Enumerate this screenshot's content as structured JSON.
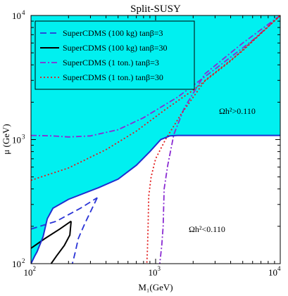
{
  "chart_data": {
    "type": "line",
    "title": "Split-SUSY",
    "xlabel": "M₁(GeV)",
    "ylabel": "μ (GeV)",
    "xscale": "log",
    "yscale": "log",
    "xlim": [
      100,
      10000
    ],
    "ylim": [
      100,
      10000
    ],
    "x_tick_labels": [
      {
        "value": 100,
        "base": "10",
        "exp": "2"
      },
      {
        "value": 1000,
        "base": "10",
        "exp": "3"
      },
      {
        "value": 10000,
        "base": "10",
        "exp": "4"
      }
    ],
    "y_tick_labels": [
      {
        "value": 100,
        "base": "10",
        "exp": "2"
      },
      {
        "value": 1000,
        "base": "10",
        "exp": "3"
      },
      {
        "value": 10000,
        "base": "10",
        "exp": "4"
      }
    ],
    "legend_position": "top-left",
    "region_labels": {
      "above": "Ωh²>0.110",
      "below": "Ωh²<0.110"
    },
    "region_colors": {
      "above": "#00f0f0",
      "below": "#ffffff"
    },
    "boundary": {
      "color": "#1f2fd0",
      "points": [
        [
          100,
          100
        ],
        [
          107,
          115
        ],
        [
          112,
          125
        ],
        [
          125,
          165
        ],
        [
          135,
          230
        ],
        [
          150,
          280
        ],
        [
          200,
          330
        ],
        [
          350,
          410
        ],
        [
          500,
          480
        ],
        [
          700,
          620
        ],
        [
          900,
          800
        ],
        [
          1100,
          1000
        ],
        [
          1300,
          1070
        ],
        [
          1500,
          1080
        ],
        [
          2500,
          1080
        ],
        [
          10000,
          1080
        ]
      ]
    },
    "series": [
      {
        "name": "SuperCDMS (100 kg) tanβ=3",
        "color": "#2a34d6",
        "dash": "dashed",
        "segments": [
          [
            [
              100,
              190
            ],
            [
              160,
              220
            ],
            [
              250,
              280
            ],
            [
              340,
              340
            ]
          ],
          [
            [
              340,
              340
            ],
            [
              270,
              210
            ],
            [
              240,
              160
            ],
            [
              225,
              120
            ],
            [
              215,
              100
            ]
          ]
        ]
      },
      {
        "name": "SuperCDMS (100 kg) tanβ=30",
        "color": "#000000",
        "dash": "solid",
        "segments": [
          [
            [
              100,
              133
            ],
            [
              130,
              160
            ],
            [
              170,
              190
            ],
            [
              210,
              220
            ]
          ],
          [
            [
              210,
              220
            ],
            [
              205,
              170
            ],
            [
              185,
              140
            ],
            [
              160,
              115
            ],
            [
              145,
              100
            ]
          ]
        ]
      },
      {
        "name": "SuperCDMS (1 ton.) tanβ=3",
        "color": "#8a2bd2",
        "dash": "dashdot",
        "segments": [
          [
            [
              100,
              1080
            ],
            [
              150,
              1070
            ],
            [
              200,
              1050
            ],
            [
              300,
              1070
            ],
            [
              500,
              1200
            ],
            [
              800,
              1500
            ],
            [
              1500,
              2200
            ],
            [
              3000,
              3700
            ],
            [
              6000,
              6300
            ],
            [
              10000,
              10000
            ]
          ],
          [
            [
              10000,
              10000
            ],
            [
              5000,
              6000
            ],
            [
              2500,
              3400
            ],
            [
              1700,
              1800
            ],
            [
              1400,
              1100
            ],
            [
              1250,
              620
            ],
            [
              1170,
              400
            ],
            [
              1150,
              200
            ],
            [
              1120,
              140
            ],
            [
              1080,
              100
            ]
          ]
        ]
      },
      {
        "name": "SuperCDMS (1 ton.)  tanβ=30",
        "color": "#e21b1b",
        "dash": "dotted",
        "segments": [
          [
            [
              100,
              470
            ],
            [
              200,
              590
            ],
            [
              400,
              830
            ],
            [
              700,
              1170
            ],
            [
              1200,
              1750
            ],
            [
              2000,
              2500
            ],
            [
              4000,
              4300
            ],
            [
              10000,
              10000
            ]
          ],
          [
            [
              10000,
              10000
            ],
            [
              5000,
              5200
            ],
            [
              2500,
              3000
            ],
            [
              1600,
              1600
            ],
            [
              1200,
              1000
            ],
            [
              1000,
              700
            ],
            [
              920,
              500
            ],
            [
              880,
              350
            ],
            [
              870,
              200
            ],
            [
              860,
              130
            ],
            [
              850,
              100
            ]
          ]
        ]
      }
    ]
  }
}
